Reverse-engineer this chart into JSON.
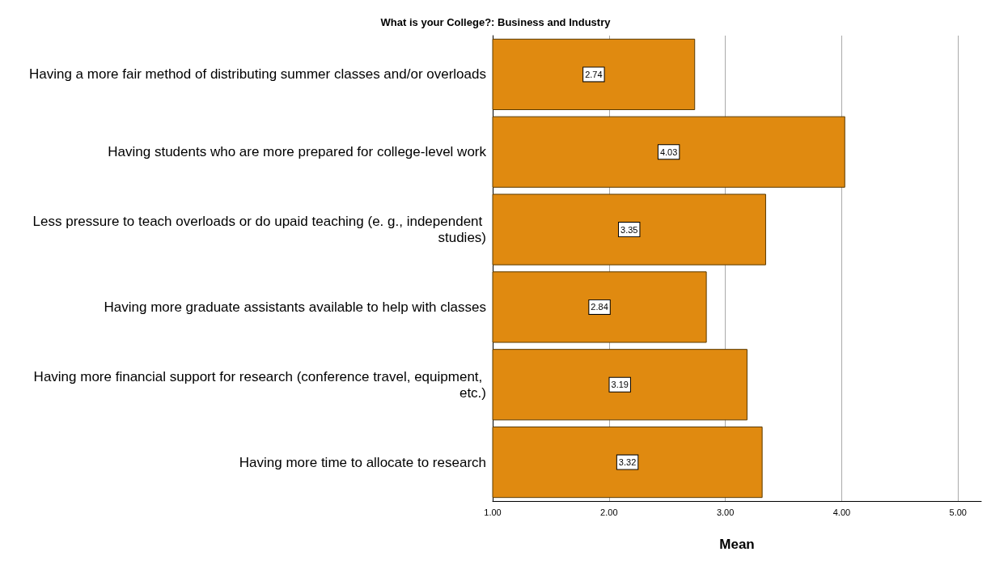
{
  "chart_data": {
    "type": "bar",
    "orientation": "horizontal",
    "title": "What is your College?: Business and Industry",
    "xlabel": "Mean",
    "categories": [
      "Having a more fair method of distributing summer classes and/or overloads",
      "Having students who are more prepared for college-level work",
      "Less pressure to teach overloads or do upaid teaching (e. g., independent studies)",
      "Having more graduate assistants available to help with classes",
      "Having more financial support for research (conference travel, equipment, etc.)",
      "Having more time to allocate to research"
    ],
    "values": [
      2.74,
      4.03,
      3.35,
      2.84,
      3.19,
      3.32
    ],
    "color": "#e08a10",
    "xlim": [
      1,
      5.2
    ],
    "xticks": [
      {
        "value": 1,
        "label": "1.00"
      },
      {
        "value": 2,
        "label": "2.00"
      },
      {
        "value": 3,
        "label": "3.00"
      },
      {
        "value": 4,
        "label": "4.00"
      },
      {
        "value": 5,
        "label": "5.00"
      }
    ],
    "grid": "x",
    "data_labels": true
  }
}
